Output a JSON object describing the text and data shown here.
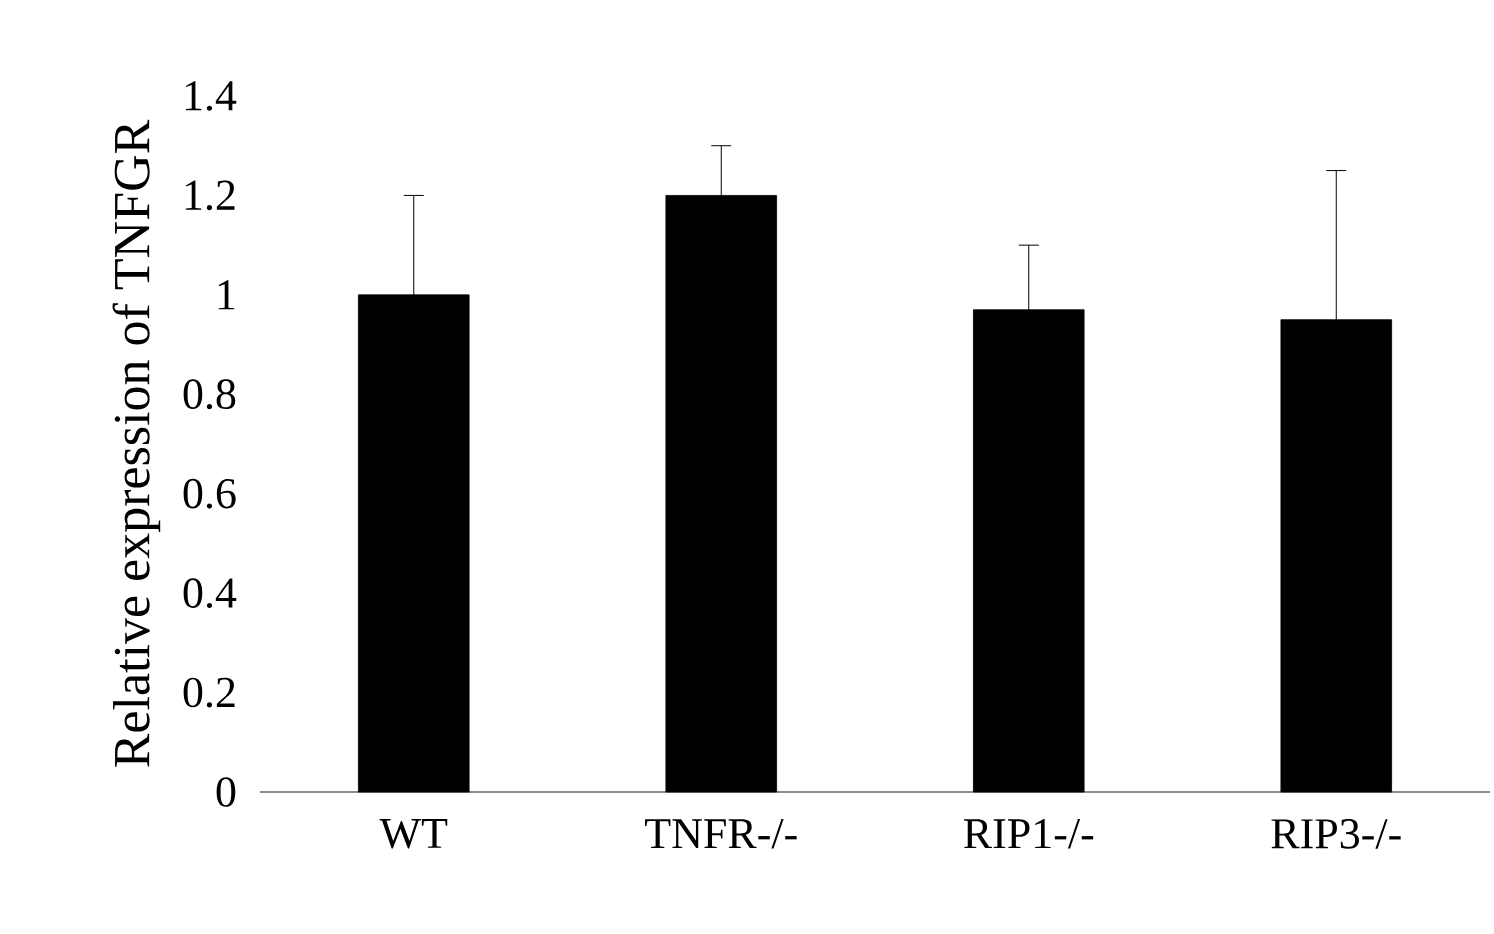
{
  "chart_data": {
    "type": "bar",
    "ylabel": "Relative expression of TNFGR",
    "categories": [
      "WT",
      "TNFR-/-",
      "RIP1-/-",
      "RIP3-/-"
    ],
    "values": [
      1.0,
      1.2,
      0.97,
      0.95
    ],
    "errors": [
      0.2,
      0.1,
      0.13,
      0.3
    ],
    "color": "#000000",
    "ylim": [
      0,
      1.4
    ],
    "yticks": [
      0,
      0.2,
      0.4,
      0.6,
      0.8,
      1,
      1.2,
      1.4
    ]
  }
}
